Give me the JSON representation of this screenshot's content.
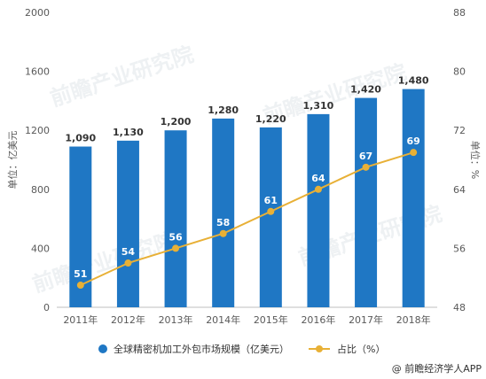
{
  "chart_data": {
    "type": "bar",
    "categories": [
      "2011年",
      "2012年",
      "2013年",
      "2014年",
      "2015年",
      "2016年",
      "2017年",
      "2018年"
    ],
    "series": [
      {
        "name": "全球精密机加工外包市场规模（亿美元）",
        "type": "bar",
        "axis": "left",
        "values": [
          1090,
          1130,
          1200,
          1280,
          1220,
          1310,
          1420,
          1480
        ],
        "data_labels": [
          "1,090",
          "1,130",
          "1,200",
          "1,280",
          "1,220",
          "1,310",
          "1,420",
          "1,480"
        ],
        "color": "#1f77c4"
      },
      {
        "name": "占比（%）",
        "type": "line",
        "axis": "right",
        "values": [
          51,
          54,
          56,
          58,
          61,
          64,
          67,
          69
        ],
        "data_labels": [
          "51",
          "54",
          "56",
          "58",
          "61",
          "64",
          "67",
          "69"
        ],
        "color": "#e8b036"
      }
    ],
    "ylabel": "单位：亿美元",
    "y2label": "单位：%",
    "ylim": [
      0,
      2000
    ],
    "y2lim": [
      48,
      88
    ],
    "yticks": [
      "0",
      "400",
      "800",
      "1200",
      "1600",
      "2000"
    ],
    "y2ticks": [
      "48",
      "56",
      "64",
      "72",
      "80",
      "88"
    ],
    "grid": false,
    "legend_position": "bottom"
  },
  "credit": "@ 前瞻经济学人APP",
  "watermark": "前瞻产业研究院"
}
